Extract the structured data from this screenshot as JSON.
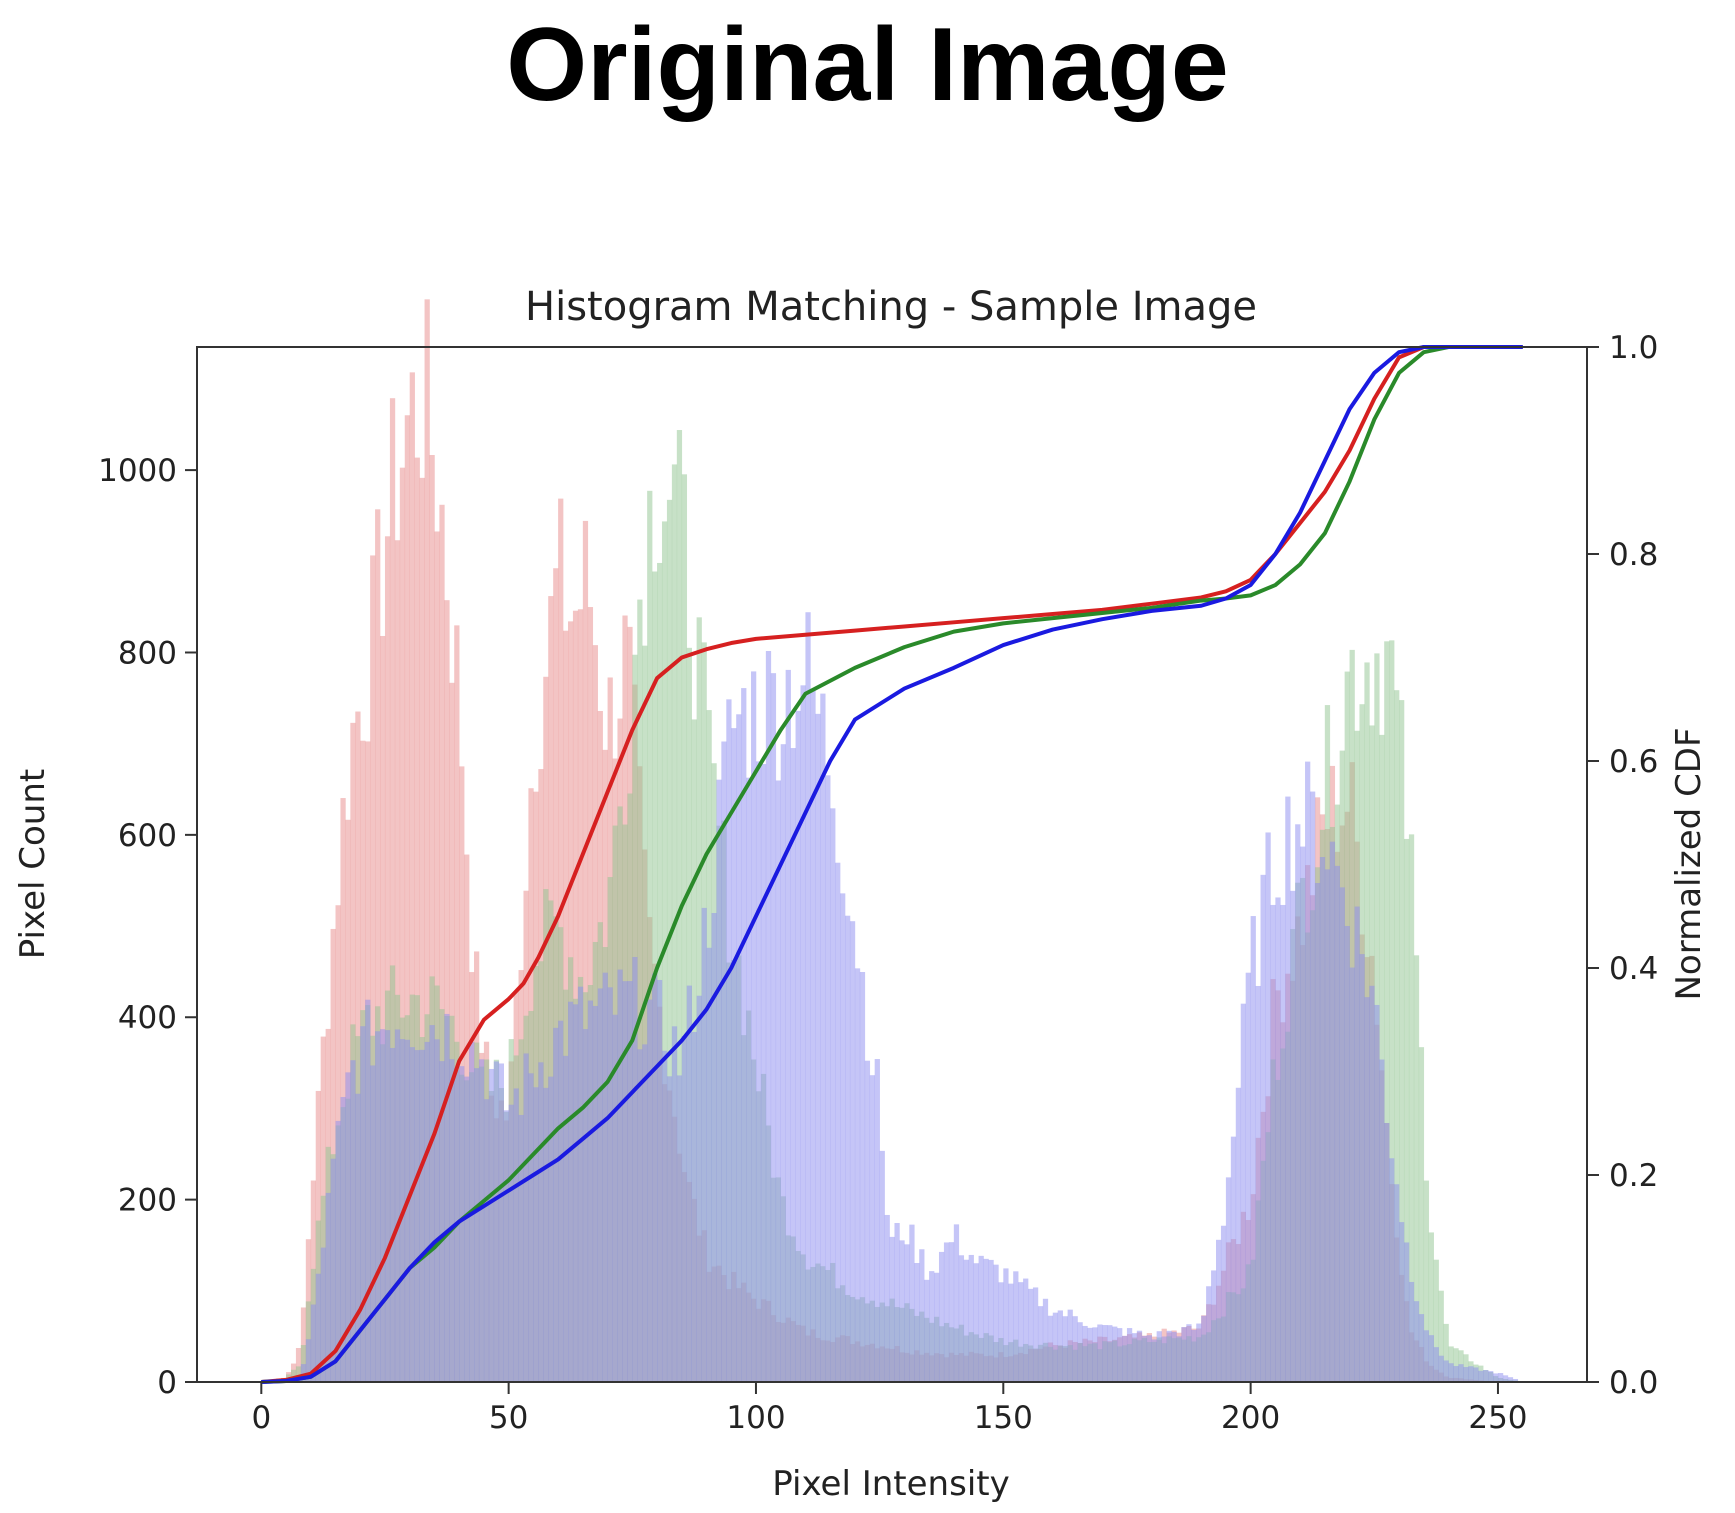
{
  "figure_title": "Original Image",
  "chart_data": {
    "type": "histogram",
    "title": "Histogram Matching - Sample Image",
    "xlabel": "Pixel Intensity",
    "ylabel": "Pixel Count",
    "y2label": "Normalized CDF",
    "xlim": [
      -13,
      268
    ],
    "ylim": [
      0,
      1135
    ],
    "y2lim": [
      0,
      1
    ],
    "xticks": [
      "0",
      "50",
      "100",
      "150",
      "200",
      "250"
    ],
    "xtick_values": [
      0,
      50,
      100,
      150,
      200,
      250
    ],
    "yticks": [
      "0",
      "200",
      "400",
      "600",
      "800",
      "1000"
    ],
    "ytick_values": [
      0,
      200,
      400,
      600,
      800,
      1000
    ],
    "y2ticks": [
      "0.0",
      "0.2",
      "0.4",
      "0.6",
      "0.8",
      "1.0"
    ],
    "y2tick_values": [
      0,
      0.2,
      0.4,
      0.6,
      0.8,
      1.0
    ],
    "grid": false,
    "colors": {
      "red_hist": "#e88a8a",
      "green_hist": "#8fc48f",
      "blue_hist": "#8c8cf0",
      "red_cdf": "#d62020",
      "green_cdf": "#2a8a2a",
      "blue_cdf": "#1a1ae0",
      "axis": "#333333"
    },
    "histograms": [
      {
        "channel": "red",
        "x": [
          0,
          5,
          8,
          10,
          15,
          18,
          22,
          26,
          30,
          33,
          36,
          40,
          43,
          46,
          50,
          55,
          60,
          63,
          66,
          70,
          74,
          78,
          82,
          86,
          90,
          95,
          100,
          110,
          120,
          126,
          130,
          140,
          150,
          160,
          170,
          180,
          190,
          200,
          205,
          210,
          215,
          220,
          225,
          228,
          232,
          236,
          240,
          250,
          255
        ],
        "values": [
          0,
          5,
          40,
          200,
          530,
          700,
          800,
          960,
          1060,
          1080,
          980,
          750,
          450,
          320,
          290,
          700,
          880,
          840,
          880,
          720,
          800,
          500,
          350,
          220,
          140,
          110,
          90,
          55,
          45,
          40,
          35,
          30,
          30,
          40,
          45,
          50,
          60,
          200,
          420,
          500,
          620,
          640,
          450,
          250,
          60,
          20,
          5,
          0,
          0
        ]
      },
      {
        "channel": "green",
        "x": [
          0,
          5,
          8,
          10,
          15,
          18,
          22,
          26,
          30,
          36,
          40,
          45,
          50,
          55,
          60,
          65,
          70,
          74,
          77,
          80,
          83,
          86,
          90,
          95,
          100,
          105,
          110,
          120,
          130,
          140,
          150,
          160,
          170,
          180,
          190,
          200,
          205,
          210,
          215,
          220,
          225,
          228,
          232,
          236,
          240,
          250,
          255
        ],
        "values": [
          0,
          5,
          20,
          120,
          280,
          350,
          400,
          410,
          420,
          410,
          380,
          320,
          330,
          470,
          500,
          440,
          520,
          700,
          900,
          1000,
          980,
          900,
          700,
          500,
          350,
          200,
          140,
          100,
          80,
          60,
          45,
          40,
          40,
          45,
          50,
          120,
          350,
          520,
          650,
          780,
          800,
          800,
          600,
          200,
          40,
          5,
          0
        ]
      },
      {
        "channel": "blue",
        "x": [
          0,
          8,
          10,
          15,
          18,
          22,
          26,
          30,
          36,
          40,
          45,
          50,
          55,
          60,
          65,
          70,
          75,
          80,
          85,
          90,
          95,
          100,
          105,
          110,
          115,
          120,
          125,
          127,
          130,
          135,
          140,
          145,
          150,
          160,
          170,
          180,
          190,
          195,
          200,
          205,
          210,
          215,
          220,
          225,
          228,
          232,
          236,
          240,
          250,
          255
        ],
        "values": [
          0,
          5,
          60,
          250,
          340,
          380,
          400,
          400,
          390,
          380,
          350,
          300,
          340,
          380,
          400,
          410,
          420,
          400,
          350,
          500,
          720,
          740,
          750,
          780,
          680,
          500,
          300,
          150,
          170,
          120,
          160,
          130,
          120,
          80,
          60,
          50,
          60,
          200,
          450,
          580,
          620,
          600,
          520,
          420,
          280,
          130,
          50,
          20,
          10,
          0
        ]
      }
    ],
    "cdf_series": [
      {
        "channel": "red",
        "x": [
          0,
          5,
          10,
          15,
          20,
          25,
          30,
          35,
          40,
          45,
          50,
          53,
          56,
          60,
          65,
          70,
          75,
          80,
          85,
          90,
          95,
          100,
          110,
          120,
          130,
          140,
          150,
          160,
          170,
          180,
          190,
          195,
          200,
          205,
          210,
          215,
          220,
          225,
          230,
          235,
          240,
          245,
          250,
          255
        ],
        "values": [
          0,
          0.002,
          0.008,
          0.03,
          0.07,
          0.12,
          0.18,
          0.24,
          0.31,
          0.35,
          0.37,
          0.385,
          0.41,
          0.45,
          0.51,
          0.57,
          0.63,
          0.68,
          0.7,
          0.708,
          0.714,
          0.718,
          0.722,
          0.726,
          0.73,
          0.734,
          0.738,
          0.742,
          0.746,
          0.752,
          0.758,
          0.764,
          0.775,
          0.8,
          0.83,
          0.86,
          0.9,
          0.95,
          0.99,
          1.0,
          1.0,
          1.0,
          1.0,
          1.0
        ]
      },
      {
        "channel": "green",
        "x": [
          0,
          5,
          10,
          15,
          20,
          25,
          30,
          35,
          40,
          45,
          50,
          55,
          60,
          65,
          70,
          75,
          80,
          85,
          90,
          95,
          100,
          105,
          110,
          120,
          130,
          140,
          150,
          160,
          170,
          180,
          190,
          195,
          200,
          205,
          210,
          215,
          220,
          225,
          230,
          235,
          240,
          245,
          250,
          255
        ],
        "values": [
          0,
          0.001,
          0.005,
          0.02,
          0.05,
          0.08,
          0.11,
          0.13,
          0.155,
          0.175,
          0.195,
          0.22,
          0.245,
          0.265,
          0.29,
          0.33,
          0.4,
          0.46,
          0.51,
          0.55,
          0.59,
          0.63,
          0.665,
          0.69,
          0.71,
          0.725,
          0.733,
          0.738,
          0.743,
          0.748,
          0.755,
          0.757,
          0.76,
          0.77,
          0.79,
          0.82,
          0.87,
          0.93,
          0.975,
          0.995,
          1.0,
          1.0,
          1.0,
          1.0
        ]
      },
      {
        "channel": "blue",
        "x": [
          0,
          5,
          10,
          15,
          20,
          25,
          30,
          35,
          40,
          45,
          50,
          55,
          60,
          65,
          70,
          75,
          80,
          85,
          90,
          95,
          100,
          105,
          110,
          115,
          120,
          130,
          140,
          150,
          160,
          170,
          180,
          190,
          195,
          200,
          205,
          210,
          215,
          220,
          225,
          230,
          235,
          240,
          245,
          250,
          255
        ],
        "values": [
          0,
          0.001,
          0.005,
          0.02,
          0.05,
          0.08,
          0.11,
          0.135,
          0.155,
          0.17,
          0.185,
          0.2,
          0.215,
          0.235,
          0.255,
          0.28,
          0.305,
          0.33,
          0.36,
          0.4,
          0.45,
          0.5,
          0.55,
          0.6,
          0.64,
          0.67,
          0.69,
          0.712,
          0.727,
          0.737,
          0.745,
          0.75,
          0.757,
          0.77,
          0.8,
          0.84,
          0.89,
          0.94,
          0.975,
          0.995,
          1.0,
          1.0,
          1.0,
          1.0,
          1.0
        ]
      }
    ]
  }
}
